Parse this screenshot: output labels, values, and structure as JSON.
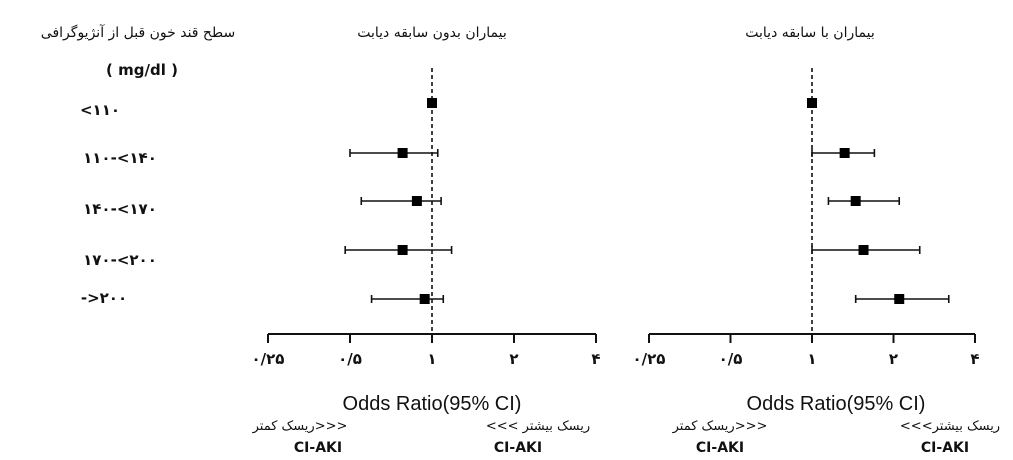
{
  "left_header": {
    "title": "سطح قند خون قبل از آنژیوگرافی",
    "unit": "( mg/dl )"
  },
  "chart_data": [
    {
      "type": "forest",
      "title": "بیماران بدون سابقه دیابت",
      "categories": [
        "<۱۱۰",
        "۱۱۰-<۱۴۰",
        "۱۴۰-<۱۷۰",
        "۱۷۰-<۲۰۰",
        "->۲۰۰"
      ],
      "estimates": [
        1.0,
        0.78,
        0.88,
        0.78,
        0.94
      ],
      "ci_low": [
        1.0,
        0.5,
        0.55,
        0.48,
        0.6
      ],
      "ci_high": [
        1.0,
        1.05,
        1.08,
        1.18,
        1.1
      ],
      "x_scale": "log",
      "xlim": [
        0.25,
        4
      ],
      "xticks": [
        0.25,
        0.5,
        1,
        2,
        4
      ],
      "xtick_labels": [
        "۰/۲۵",
        "۰/۵",
        "۱",
        "۲",
        "۴"
      ],
      "reference_line": 1,
      "xlabel": "Odds Ratio(95% CI)",
      "left_note": "ریسک کمتر>>>",
      "left_note_sub": "CI-AKI",
      "right_note": "<<< ریسک بیشتر",
      "right_note_sub": "CI-AKI"
    },
    {
      "type": "forest",
      "title": "بیماران با سابقه دیابت",
      "categories": [
        "<۱۱۰",
        "۱۱۰-<۱۴۰",
        "۱۴۰-<۱۷۰",
        "۱۷۰-<۲۰۰",
        "->۲۰۰"
      ],
      "estimates": [
        1.0,
        1.32,
        1.45,
        1.55,
        2.1
      ],
      "ci_low": [
        1.0,
        1.0,
        1.15,
        1.0,
        1.45
      ],
      "ci_high": [
        1.0,
        1.7,
        2.1,
        2.5,
        3.2
      ],
      "x_scale": "log",
      "xlim": [
        0.25,
        4
      ],
      "xticks": [
        0.25,
        0.5,
        1,
        2,
        4
      ],
      "xtick_labels": [
        "۰/۲۵",
        "۰/۵",
        "۱",
        "۲",
        "۴"
      ],
      "reference_line": 1,
      "xlabel": "Odds Ratio(95% CI)",
      "left_note": "ریسک کمتر>>>",
      "left_note_sub": "CI-AKI",
      "right_note": "<<<ریسک بیشتر",
      "right_note_sub": "CI-AKI"
    }
  ]
}
